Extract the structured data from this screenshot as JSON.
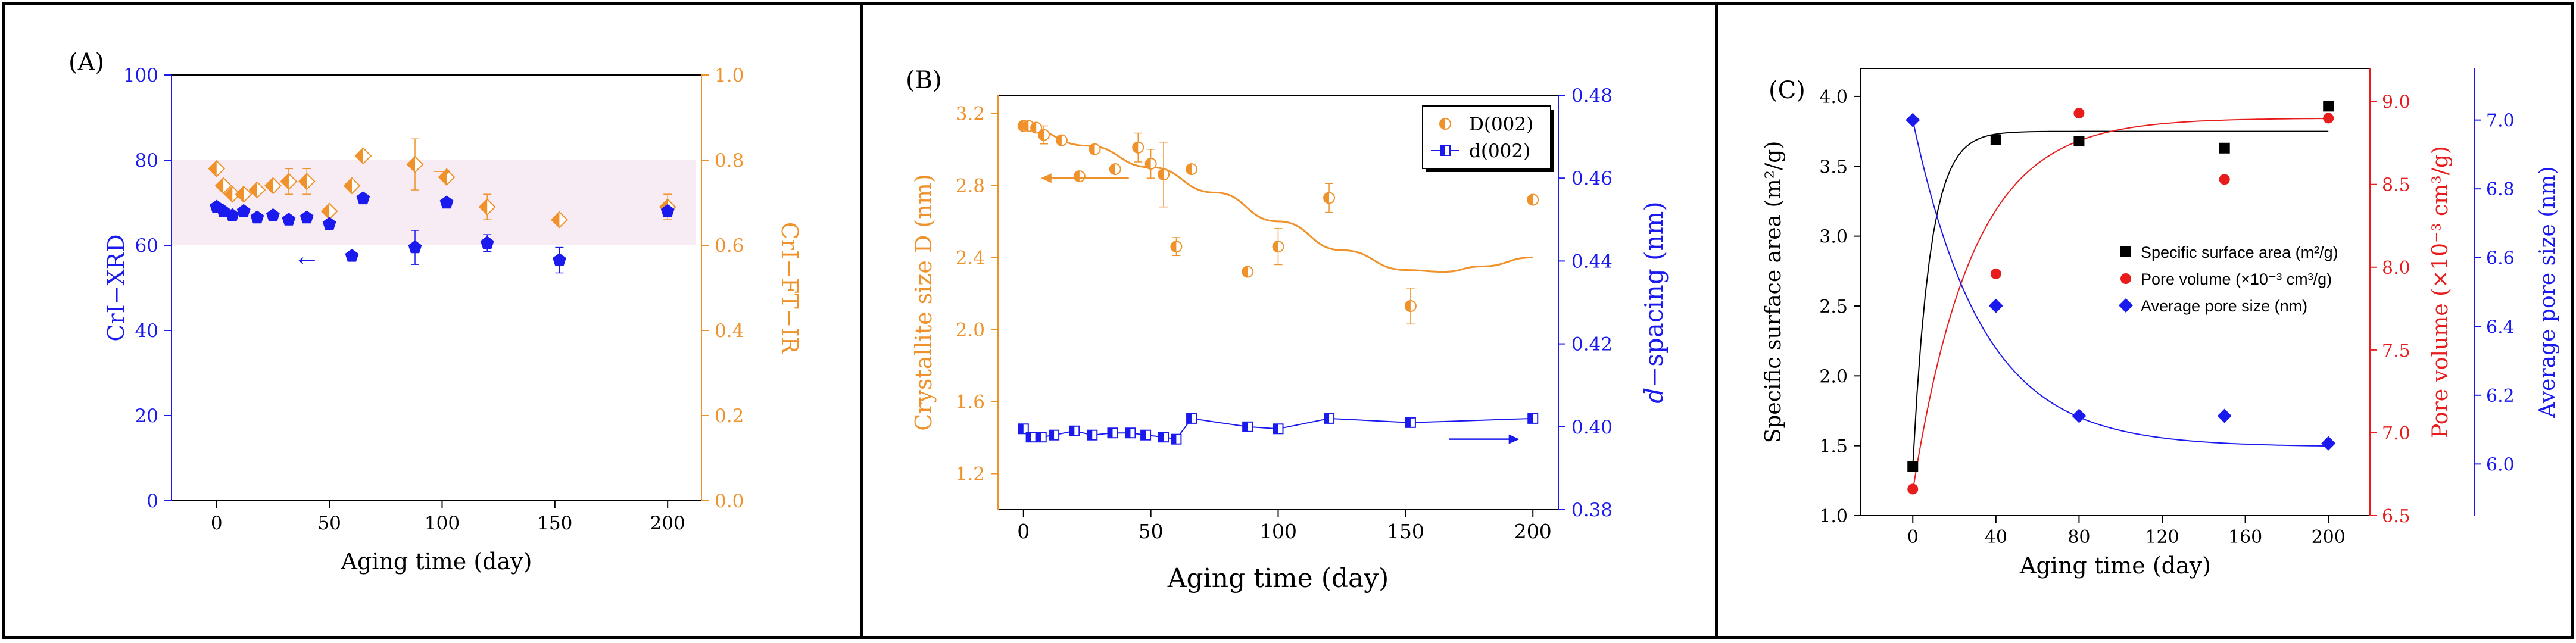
{
  "chart_data": [
    {
      "panel_label": "(A)",
      "type": "scatter",
      "xlabel": "Aging time (day)",
      "ylabel_left": "CrI−XRD",
      "ylabel_right": "CrI−FT−IR",
      "xlim": [
        -20,
        215
      ],
      "ylim_left": [
        0,
        100
      ],
      "ylim_right": [
        0.0,
        1.0
      ],
      "xticks": [
        "0",
        "50",
        "100",
        "150",
        "200"
      ],
      "yticks_left": [
        "0",
        "20",
        "40",
        "60",
        "80",
        "100"
      ],
      "yticks_right": [
        "0.0",
        "0.2",
        "0.4",
        "0.6",
        "0.8",
        "1.0"
      ],
      "shaded_band_left": [
        60,
        80
      ],
      "colors": {
        "left": "#1a1aee",
        "right": "#f0922b",
        "band": "#f8ecf4"
      },
      "series": [
        {
          "name": "CrI-XRD",
          "axis": "left",
          "marker": "pentagon",
          "x": [
            0,
            3,
            7,
            12,
            18,
            25,
            32,
            40,
            50,
            60,
            65,
            88,
            102,
            120,
            152,
            200
          ],
          "y": [
            69,
            68,
            67,
            68,
            66.5,
            67,
            66,
            66.5,
            65,
            57.5,
            71,
            59.5,
            70,
            60.5,
            56.5,
            68
          ],
          "err": [
            0,
            0,
            0,
            0,
            0,
            0,
            0,
            0,
            0,
            0,
            0,
            4,
            0,
            2,
            3,
            0
          ]
        },
        {
          "name": "CrI-FT-IR",
          "axis": "right",
          "marker": "half-diamond",
          "x": [
            0,
            3,
            7,
            12,
            18,
            25,
            32,
            40,
            50,
            60,
            65,
            88,
            102,
            120,
            152,
            200
          ],
          "y": [
            0.78,
            0.74,
            0.72,
            0.72,
            0.73,
            0.74,
            0.75,
            0.75,
            0.68,
            0.74,
            0.81,
            0.79,
            0.76,
            0.69,
            0.66,
            0.69
          ],
          "err": [
            0,
            0,
            0,
            0,
            0,
            0,
            0.03,
            0.03,
            0,
            0,
            0,
            0.06,
            0,
            0.03,
            0,
            0.03
          ]
        }
      ],
      "annotations": [
        {
          "text": "←",
          "meaning": "arrow pointing to left axis",
          "x": 40,
          "y": 57
        },
        {
          "text": "→",
          "meaning": "arrow pointing to right axis",
          "x": 100,
          "y": 0.78
        }
      ]
    },
    {
      "panel_label": "(B)",
      "type": "scatter+line",
      "xlabel": "Aging time (day)",
      "ylabel_left": "Crystallite size D (nm)",
      "ylabel_right_italic": "d",
      "ylabel_right_rest": "−spacing (nm)",
      "xlim": [
        -10,
        210
      ],
      "ylim_left": [
        1.0,
        3.3
      ],
      "ylim_right": [
        0.38,
        0.48
      ],
      "xticks": [
        "0",
        "50",
        "100",
        "150",
        "200"
      ],
      "yticks_left": [
        "1.2",
        "1.6",
        "2.0",
        "2.4",
        "2.8",
        "3.2"
      ],
      "yticks_right": [
        "0.38",
        "0.40",
        "0.42",
        "0.44",
        "0.46",
        "0.48"
      ],
      "colors": {
        "left": "#f0922b",
        "right": "#1a1aee"
      },
      "legend": [
        "D(002)",
        "d(002)"
      ],
      "series": [
        {
          "name": "D(002)",
          "axis": "left",
          "marker": "half-circle",
          "x": [
            0,
            2,
            5,
            8,
            15,
            22,
            28,
            36,
            45,
            50,
            55,
            60,
            66,
            88,
            100,
            120,
            152,
            200
          ],
          "y": [
            3.13,
            3.13,
            3.12,
            3.08,
            3.05,
            2.85,
            3.0,
            2.89,
            3.01,
            2.92,
            2.86,
            2.46,
            2.89,
            2.32,
            2.46,
            2.73,
            2.13,
            2.72
          ],
          "err": [
            0,
            0,
            0,
            0.05,
            0,
            0,
            0,
            0,
            0.08,
            0.08,
            0.18,
            0.05,
            0,
            0,
            0.1,
            0.08,
            0.1,
            0
          ],
          "fit_x": [
            0,
            25,
            50,
            75,
            100,
            125,
            150,
            165,
            180,
            200
          ],
          "fit_y": [
            3.12,
            3.02,
            2.9,
            2.76,
            2.6,
            2.44,
            2.33,
            2.32,
            2.35,
            2.4
          ]
        },
        {
          "name": "d(002)",
          "axis": "right",
          "marker": "half-square",
          "x": [
            0,
            3,
            7,
            12,
            20,
            27,
            35,
            42,
            48,
            55,
            60,
            66,
            88,
            100,
            120,
            152,
            200
          ],
          "y": [
            0.3995,
            0.3975,
            0.3975,
            0.398,
            0.399,
            0.398,
            0.3985,
            0.3985,
            0.398,
            0.3975,
            0.397,
            0.402,
            0.4,
            0.3995,
            0.402,
            0.401,
            0.402
          ]
        }
      ],
      "annotations": [
        {
          "text": "←",
          "meaning": "arrow pointing to left axis",
          "x": 25,
          "y": 2.84
        },
        {
          "text": "→",
          "meaning": "arrow pointing to right axis",
          "x": 180,
          "y": 0.397
        }
      ]
    },
    {
      "panel_label": "(C)",
      "type": "scatter+line",
      "xlabel": "Aging time (day)",
      "ylabel_left": "Specific surface area (m²/g)",
      "ylabel_mid": "Pore volume (×10⁻³ cm³/g)",
      "ylabel_right": "Average pore size (nm)",
      "xlim": [
        -25,
        220
      ],
      "ylim_left": [
        1.0,
        4.2
      ],
      "ylim_mid": [
        6.5,
        9.2
      ],
      "ylim_right": [
        5.85,
        7.15
      ],
      "xticks": [
        "0",
        "40",
        "80",
        "120",
        "160",
        "200"
      ],
      "yticks_left": [
        "1.0",
        "1.5",
        "2.0",
        "2.5",
        "3.0",
        "3.5",
        "4.0"
      ],
      "yticks_mid": [
        "6.5",
        "7.0",
        "7.5",
        "8.0",
        "8.5",
        "9.0"
      ],
      "yticks_right": [
        "6.0",
        "6.2",
        "6.4",
        "6.6",
        "6.8",
        "7.0"
      ],
      "colors": {
        "left": "#000000",
        "mid": "#e81c1c",
        "right": "#1a1aee"
      },
      "legend": [
        "Specific surface area (m²/g)",
        "Pore volume (×10⁻³ cm³/g)",
        "Average pore size (nm)"
      ],
      "series": [
        {
          "name": "Specific surface area (m²/g)",
          "axis": "left",
          "marker": "square",
          "x": [
            0,
            40,
            80,
            150,
            200
          ],
          "y": [
            1.35,
            3.69,
            3.68,
            3.63,
            3.93
          ],
          "fit": {
            "y0": 1.35,
            "ymax": 3.75,
            "k": 0.12
          }
        },
        {
          "name": "Pore volume (×10⁻³ cm³/g)",
          "axis": "mid",
          "marker": "circle",
          "x": [
            0,
            40,
            80,
            150,
            200
          ],
          "y": [
            6.66,
            7.96,
            8.93,
            8.53,
            8.9
          ],
          "fit": {
            "y0": 6.65,
            "ymax": 8.9,
            "k": 0.035
          }
        },
        {
          "name": "Average pore size (nm)",
          "axis": "right",
          "marker": "diamond",
          "x": [
            0,
            40,
            80,
            150,
            200
          ],
          "y": [
            7.0,
            6.46,
            6.14,
            6.14,
            6.06
          ],
          "fit": {
            "y0": 7.0,
            "ymin": 6.05,
            "k": 0.03
          }
        }
      ]
    }
  ]
}
